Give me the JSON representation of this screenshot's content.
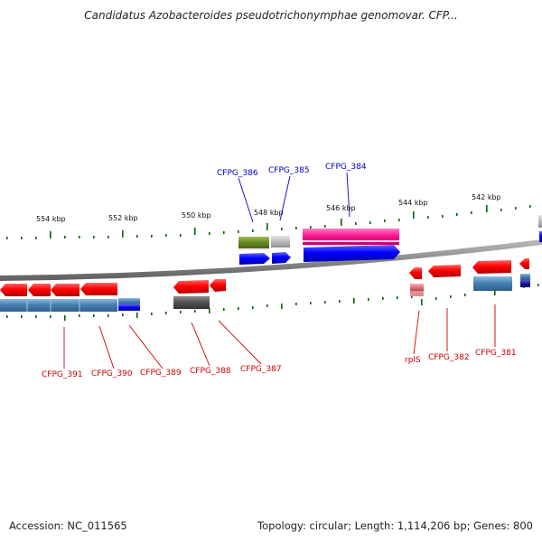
{
  "title": "Candidatus Azobacteroides pseudotrichonymphae genomovar. CFP...",
  "footer": {
    "accession": "Accession: NC_011565",
    "summary": "Topology: circular; Length: 1,114,206 bp; Genes: 800"
  },
  "scale_labels": [
    "554 kbp",
    "552 kbp",
    "550 kbp",
    "548 kbp",
    "546 kbp",
    "544 kbp",
    "542 kbp"
  ],
  "gene_labels_top": [
    "CFPG_386",
    "CFPG_385",
    "CFPG_384"
  ],
  "gene_labels_bottom": [
    "CFPG_391",
    "CFPG_390",
    "CFPG_389",
    "CFPG_388",
    "CFPG_387",
    "rplS",
    "CFPG_382",
    "CFPG_381"
  ],
  "colors": {
    "forward_gene": "#ff0000",
    "reverse_gene": "#ff0000",
    "cds_blue": "#0000ff",
    "cds_steel": "#4682b4",
    "cds_magenta": "#ff1493",
    "cds_olive": "#6b8e23",
    "cds_gray": "#c0c0c0",
    "cds_darkgray": "#555555",
    "top_label": "#0000cc",
    "bottom_label": "#cc0000",
    "tick": "#006400",
    "backbone": "#888888"
  }
}
